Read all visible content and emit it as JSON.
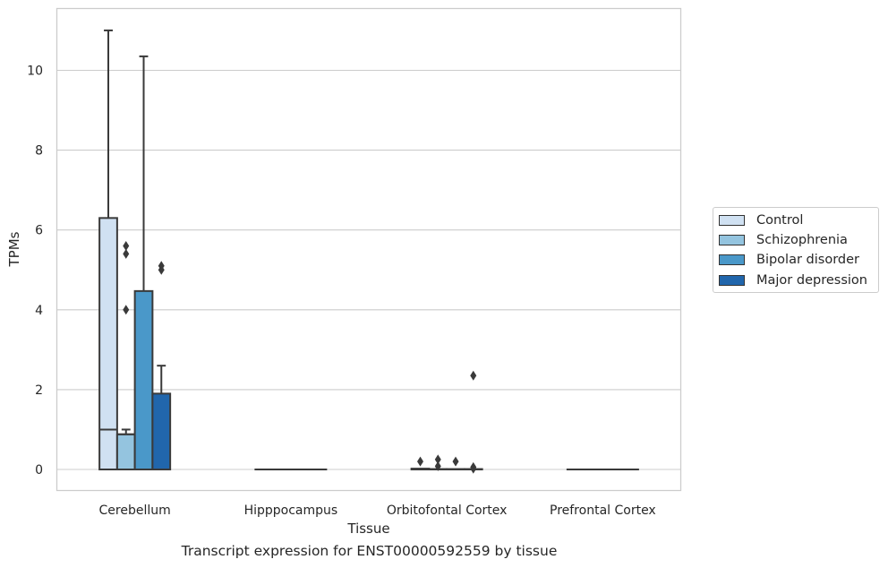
{
  "chart_data": {
    "type": "box",
    "title": "Transcript expression for ENST00000592559 by tissue",
    "xlabel": "Tissue",
    "ylabel": "TPMs",
    "ylim": [
      -0.52,
      11.6
    ],
    "yticks": [
      0,
      2,
      4,
      6,
      8,
      10
    ],
    "grid": "horizontal",
    "legend_position": "right",
    "categories": [
      "Cerebellum",
      "Hipppocampus",
      "Orbitofontal Cortex",
      "Prefrontal Cortex"
    ],
    "series": [
      {
        "name": "Control",
        "color": "#d0e1f2",
        "boxes": [
          {
            "q1": 0,
            "median": 1.0,
            "q3": 6.3,
            "whisker_low": 0,
            "whisker_high": 11.0,
            "outliers": []
          },
          {
            "q1": 0,
            "median": 0,
            "q3": 0,
            "whisker_low": 0,
            "whisker_high": 0,
            "outliers": []
          },
          {
            "q1": 0,
            "median": 0,
            "q3": 0.02,
            "whisker_low": 0,
            "whisker_high": 0.02,
            "outliers": [
              0.2
            ]
          },
          {
            "q1": 0,
            "median": 0,
            "q3": 0,
            "whisker_low": 0,
            "whisker_high": 0,
            "outliers": []
          }
        ]
      },
      {
        "name": "Schizophrenia",
        "color": "#94c4df",
        "boxes": [
          {
            "q1": 0,
            "median": 0.88,
            "q3": 0.88,
            "whisker_low": 0,
            "whisker_high": 1.0,
            "outliers": [
              5.6,
              5.4,
              4.0
            ]
          },
          {
            "q1": 0,
            "median": 0,
            "q3": 0,
            "whisker_low": 0,
            "whisker_high": 0,
            "outliers": []
          },
          {
            "q1": 0,
            "median": 0,
            "q3": 0.01,
            "whisker_low": 0,
            "whisker_high": 0.01,
            "outliers": [
              0.25,
              0.08
            ]
          },
          {
            "q1": 0,
            "median": 0,
            "q3": 0,
            "whisker_low": 0,
            "whisker_high": 0,
            "outliers": []
          }
        ]
      },
      {
        "name": "Bipolar disorder",
        "color": "#4a98c9",
        "boxes": [
          {
            "q1": 0,
            "median": 0,
            "q3": 4.47,
            "whisker_low": 0,
            "whisker_high": 10.35,
            "outliers": []
          },
          {
            "q1": 0,
            "median": 0,
            "q3": 0,
            "whisker_low": 0,
            "whisker_high": 0,
            "outliers": []
          },
          {
            "q1": 0,
            "median": 0,
            "q3": 0.01,
            "whisker_low": 0,
            "whisker_high": 0.01,
            "outliers": [
              0.2
            ]
          },
          {
            "q1": 0,
            "median": 0,
            "q3": 0,
            "whisker_low": 0,
            "whisker_high": 0,
            "outliers": []
          }
        ]
      },
      {
        "name": "Major depression",
        "color": "#2166ac",
        "boxes": [
          {
            "q1": 0,
            "median": 0,
            "q3": 1.9,
            "whisker_low": 0,
            "whisker_high": 2.6,
            "outliers": [
              5.1,
              5.0
            ]
          },
          {
            "q1": 0,
            "median": 0,
            "q3": 0,
            "whisker_low": 0,
            "whisker_high": 0,
            "outliers": []
          },
          {
            "q1": 0,
            "median": 0,
            "q3": 0.01,
            "whisker_low": 0,
            "whisker_high": 0.01,
            "outliers": [
              2.35,
              0.06,
              0.02
            ]
          },
          {
            "q1": 0,
            "median": 0,
            "q3": 0,
            "whisker_low": 0,
            "whisker_high": 0,
            "outliers": []
          }
        ]
      }
    ]
  }
}
